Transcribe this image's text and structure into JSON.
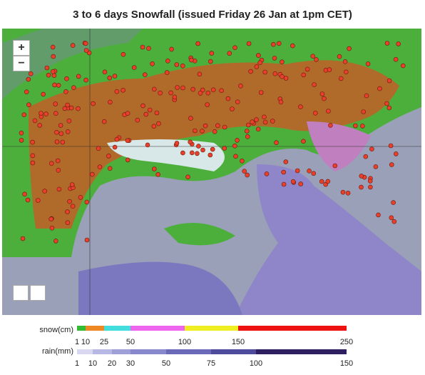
{
  "header": {
    "title": "3 to 6 days Snowfall (issued Friday 26 Jan at 1pm CET)"
  },
  "map": {
    "zoom_in": "+",
    "zoom_out": "−"
  },
  "legend": {
    "snow": {
      "label": "snow(cm)",
      "ticks": [
        1,
        10,
        25,
        50,
        100,
        150,
        250
      ]
    },
    "rain": {
      "label": "rain(mm)",
      "ticks": [
        1,
        10,
        20,
        30,
        50,
        75,
        100,
        150
      ]
    }
  }
}
